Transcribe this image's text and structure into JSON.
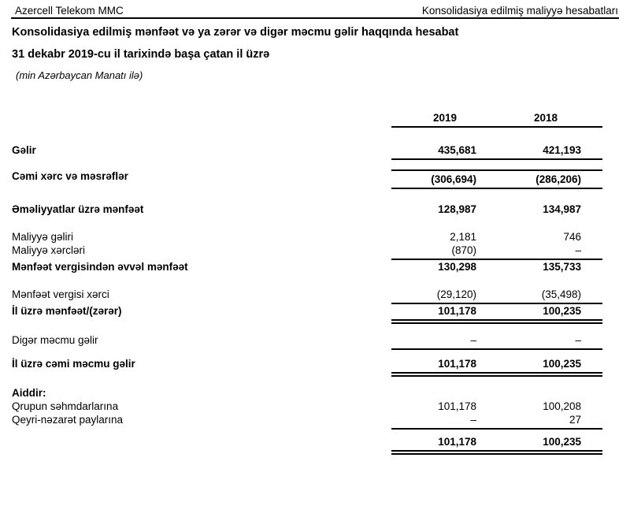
{
  "header": {
    "company": "Azercell Telekom MMC",
    "report_type": "Konsolidasiya edilmiş maliyyə hesabatları"
  },
  "title": "Konsolidasiya edilmiş mənfəət və ya zərər və digər məcmu gəlir haqqında hesabat",
  "subtitle": "31 dekabr 2019-cu il tarixində başa çatan il üzrə",
  "currency_note": "(min Azərbaycan Manatı ilə)",
  "table": {
    "columns": [
      "2019",
      "2018"
    ],
    "rows": [
      {
        "label": "Gəlir",
        "v2019": "435,681",
        "v2018": "421,193"
      },
      {
        "label": "Cəmi xərc və məsrəflər",
        "v2019": "(306,694)",
        "v2018": "(286,206)"
      },
      {
        "label": "Əməliyyatlar üzrə mənfəət",
        "v2019": "128,987",
        "v2018": "134,987"
      },
      {
        "label": "Maliyyə gəliri",
        "v2019": "2,181",
        "v2018": "746"
      },
      {
        "label": "Maliyyə xərcləri",
        "v2019": "(870)",
        "v2018": "–"
      },
      {
        "label": "Mənfəət vergisindən əvvəl mənfəət",
        "v2019": "130,298",
        "v2018": "135,733"
      },
      {
        "label": "Mənfəət vergisi xərci",
        "v2019": "(29,120)",
        "v2018": "(35,498)"
      },
      {
        "label": "İl üzrə mənfəət/(zərər)",
        "v2019": "101,178",
        "v2018": "100,235"
      },
      {
        "label": "Digər məcmu gəlir",
        "v2019": "–",
        "v2018": "–"
      },
      {
        "label": "İl üzrə cəmi məcmu gəlir",
        "v2019": "101,178",
        "v2018": "100,235"
      },
      {
        "label": "Aiddir:",
        "v2019": "",
        "v2018": ""
      },
      {
        "label": "Qrupun səhmdarlarına",
        "v2019": "101,178",
        "v2018": "100,208"
      },
      {
        "label": "Qeyri-nəzarət paylarına",
        "v2019": "–",
        "v2018": "27"
      },
      {
        "label": "",
        "v2019": "101,178",
        "v2018": "100,235"
      }
    ]
  }
}
